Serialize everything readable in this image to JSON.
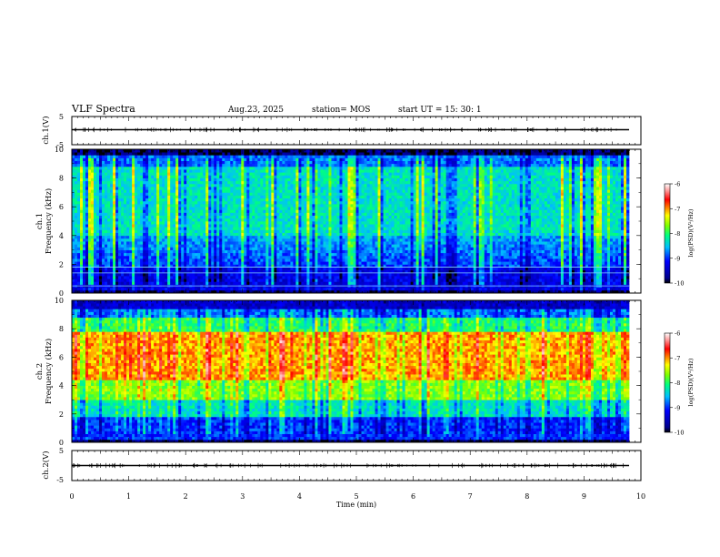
{
  "header": {
    "title": "VLF Spectra",
    "date": "Aug.23, 2025",
    "station": "station= MOS",
    "start": "start  UT  =   15: 30: 1"
  },
  "chart_data": [
    {
      "type": "line",
      "name": "ch1-waveform",
      "ylabel": "ch.1(V)",
      "ylim": [
        -5,
        5
      ],
      "yticks": [
        "5",
        "-5"
      ],
      "xlim": [
        0,
        10
      ],
      "level": 0
    },
    {
      "type": "heatmap",
      "name": "ch1-spectrogram",
      "ylabel_top": "ch.1",
      "ylabel": "Frequency (kHz)",
      "ylim": [
        0,
        10
      ],
      "yticks": [
        "0",
        "2",
        "4",
        "6",
        "8",
        "10"
      ],
      "xlim": [
        0,
        10
      ],
      "colorbar": {
        "label": "log(PSD)(V²/Hz)",
        "range": [
          -10,
          -6
        ],
        "ticks": [
          "-6",
          "-7",
          "-8",
          "-9",
          "-10"
        ]
      },
      "horizontal_lines_khz": [
        0.5,
        1.4,
        1.8
      ]
    },
    {
      "type": "heatmap",
      "name": "ch2-spectrogram",
      "ylabel_top": "ch.2",
      "ylabel": "Frequency (kHz)",
      "ylim": [
        0,
        10
      ],
      "yticks": [
        "0",
        "2",
        "4",
        "6",
        "8",
        "10"
      ],
      "xlim": [
        0,
        10
      ],
      "colorbar": {
        "label": "log(PSD)(V²/Hz)",
        "range": [
          -10,
          -6
        ],
        "ticks": [
          "-6",
          "-7",
          "-8",
          "-9",
          "-10"
        ]
      }
    },
    {
      "type": "line",
      "name": "ch2-waveform",
      "ylabel": "ch.2(V)",
      "ylim": [
        -5,
        5
      ],
      "yticks": [
        "5",
        "-5"
      ],
      "xlim": [
        0,
        10
      ],
      "level": 0
    }
  ],
  "xaxis": {
    "label": "Time (min)",
    "ticks": [
      "0",
      "1",
      "2",
      "3",
      "4",
      "5",
      "6",
      "7",
      "8",
      "9",
      "10"
    ],
    "range": [
      0,
      10
    ]
  },
  "colors": {
    "background": "#ffffff",
    "axes": "#000000"
  }
}
